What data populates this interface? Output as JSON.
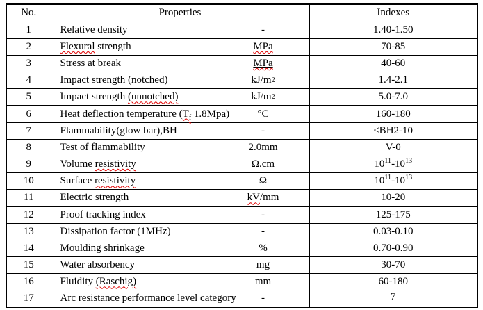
{
  "colors": {
    "text": "#000000",
    "border": "#000000",
    "background": "#ffffff",
    "spellcheck_squiggle": "#e00000"
  },
  "table": {
    "col_headers": [
      "No.",
      "Properties",
      "Indexes"
    ],
    "rows": [
      {
        "no": "1",
        "property": [
          [
            "Relative density"
          ]
        ],
        "unit": [
          [
            "-"
          ]
        ],
        "index": [
          [
            "1.40-1.50"
          ]
        ]
      },
      {
        "no": "2",
        "property": [
          [
            "Flexural",
            "sq"
          ],
          [
            " strength"
          ]
        ],
        "unit": [
          [
            "MPa",
            "u sq"
          ]
        ],
        "index": [
          [
            "70-85"
          ]
        ]
      },
      {
        "no": "3",
        "property": [
          [
            "Stress at break"
          ]
        ],
        "unit": [
          [
            "MPa",
            "u sq"
          ]
        ],
        "index": [
          [
            "40-60"
          ]
        ]
      },
      {
        "no": "4",
        "property": [
          [
            "Impact strength (notched)"
          ]
        ],
        "unit": [
          [
            "kJ/m"
          ],
          [
            "2",
            "sup"
          ]
        ],
        "index": [
          [
            "1.4-2.1"
          ]
        ]
      },
      {
        "no": "5",
        "property": [
          [
            "Impact strength "
          ],
          [
            "(unnotched)",
            "sq"
          ]
        ],
        "unit": [
          [
            "kJ/m"
          ],
          [
            "2",
            "sup"
          ]
        ],
        "index": [
          [
            "5.0-7.0"
          ]
        ]
      },
      {
        "no": "6",
        "property": [
          [
            "Heat deflection temperature ("
          ],
          [
            "T",
            "sq"
          ],
          [
            "f",
            "sub sq"
          ],
          [
            " 1.8Mpa)"
          ]
        ],
        "unit": [
          [
            "°C"
          ]
        ],
        "index": [
          [
            "160-180"
          ]
        ]
      },
      {
        "no": "7",
        "property": [
          [
            "Flammability(glow bar),BH"
          ]
        ],
        "unit": [
          [
            "-"
          ]
        ],
        "index": [
          [
            "≤BH2-10"
          ]
        ]
      },
      {
        "no": "8",
        "property": [
          [
            "Test of flammability"
          ]
        ],
        "unit": [
          [
            "2.0mm"
          ]
        ],
        "index": [
          [
            "V-0"
          ]
        ]
      },
      {
        "no": "9",
        "property": [
          [
            "Volume "
          ],
          [
            "resistivity",
            "sq"
          ]
        ],
        "unit": [
          [
            "Ω.cm"
          ]
        ],
        "index": [
          [
            "10"
          ],
          [
            "11",
            "sup"
          ],
          [
            "-10"
          ],
          [
            "13",
            "sup"
          ]
        ]
      },
      {
        "no": "10",
        "property": [
          [
            "Surface "
          ],
          [
            "resistivity",
            "sq"
          ]
        ],
        "unit": [
          [
            "Ω"
          ]
        ],
        "index": [
          [
            "10"
          ],
          [
            "11",
            "sup"
          ],
          [
            "-10"
          ],
          [
            "13",
            "sup"
          ]
        ]
      },
      {
        "no": "11",
        "property": [
          [
            "Electric strength"
          ]
        ],
        "unit": [
          [
            "kV",
            "sq"
          ],
          [
            "/mm"
          ]
        ],
        "index": [
          [
            "10-20"
          ]
        ]
      },
      {
        "no": "12",
        "property": [
          [
            "Proof tracking index"
          ]
        ],
        "unit": [
          [
            "-"
          ]
        ],
        "index": [
          [
            "125-175"
          ]
        ]
      },
      {
        "no": "13",
        "property": [
          [
            "Dissipation factor (1MHz)"
          ]
        ],
        "unit": [
          [
            "-"
          ]
        ],
        "index": [
          [
            "0.03-0.10"
          ]
        ]
      },
      {
        "no": "14",
        "property": [
          [
            "Moulding shrinkage"
          ]
        ],
        "unit": [
          [
            "%"
          ]
        ],
        "index": [
          [
            "0.70-0.90"
          ]
        ]
      },
      {
        "no": "15",
        "property": [
          [
            "Water absorbency"
          ]
        ],
        "unit": [
          [
            "mg"
          ]
        ],
        "index": [
          [
            "30-70"
          ]
        ]
      },
      {
        "no": "16",
        "property": [
          [
            "Fluidity "
          ],
          [
            "(Raschig)",
            "sq"
          ]
        ],
        "unit": [
          [
            "mm"
          ]
        ],
        "index": [
          [
            "60-180"
          ]
        ]
      },
      {
        "no": "17",
        "property": [
          [
            "Arc resistance performance level category"
          ]
        ],
        "unit": [
          [
            "-"
          ]
        ],
        "index": [
          [
            "7"
          ]
        ],
        "index_valign": "top"
      }
    ]
  }
}
